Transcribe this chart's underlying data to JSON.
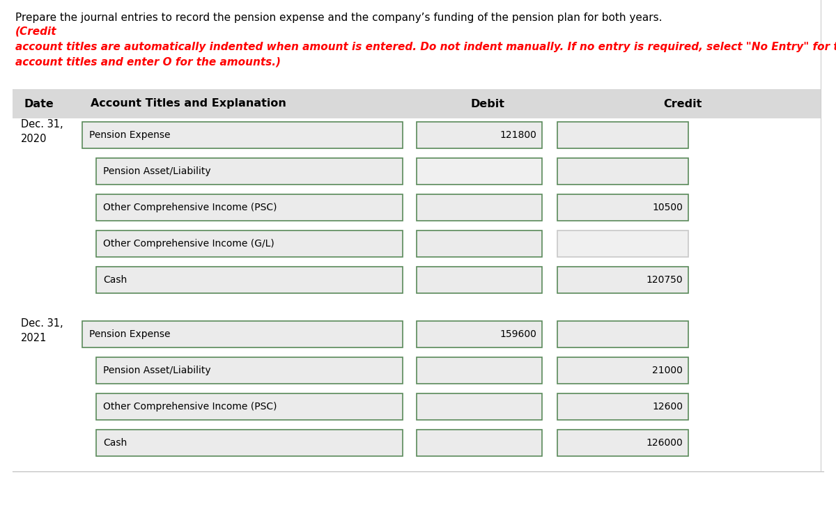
{
  "title_normal": "Prepare the journal entries to record the pension expense and the company’s funding of the pension plan for both years. ",
  "title_italic_red": "(Credit\naccount titles are automatically indented when amount is entered. Do not indent manually. If no entry is required, select \"No Entry\" for the\naccount titles and enter O for the amounts.)",
  "header_date": "Date",
  "header_account": "Account Titles and Explanation",
  "header_debit": "Debit",
  "header_credit": "Credit",
  "header_bg": "#d9d9d9",
  "bg_color": "#ffffff",
  "box_fill_light": "#ebebeb",
  "box_fill_white": "#f0f0f0",
  "box_border_green": "#5a8a5a",
  "box_border_white": "#c8c8c8",
  "rows_2020": [
    {
      "label": "Pension Expense",
      "debit": "121800",
      "credit": "",
      "indent": false,
      "debit_fill": "light",
      "credit_fill": "light"
    },
    {
      "label": "Pension Asset/Liability",
      "debit": "",
      "credit": "",
      "indent": true,
      "debit_fill": "white",
      "credit_fill": "light"
    },
    {
      "label": "Other Comprehensive Income (PSC)",
      "debit": "",
      "credit": "10500",
      "indent": true,
      "debit_fill": "light",
      "credit_fill": "light"
    },
    {
      "label": "Other Comprehensive Income (G/L)",
      "debit": "",
      "credit": "",
      "indent": true,
      "debit_fill": "light",
      "credit_fill": "white"
    },
    {
      "label": "Cash",
      "debit": "",
      "credit": "120750",
      "indent": true,
      "debit_fill": "light",
      "credit_fill": "light"
    }
  ],
  "rows_2021": [
    {
      "label": "Pension Expense",
      "debit": "159600",
      "credit": "",
      "indent": false,
      "debit_fill": "light",
      "credit_fill": "light"
    },
    {
      "label": "Pension Asset/Liability",
      "debit": "",
      "credit": "21000",
      "indent": true,
      "debit_fill": "light",
      "credit_fill": "light"
    },
    {
      "label": "Other Comprehensive Income (PSC)",
      "debit": "",
      "credit": "12600",
      "indent": true,
      "debit_fill": "light",
      "credit_fill": "light"
    },
    {
      "label": "Cash",
      "debit": "",
      "credit": "126000",
      "indent": true,
      "debit_fill": "light",
      "credit_fill": "light"
    }
  ],
  "date_2020": "Dec. 31,\n2020",
  "date_2021": "Dec. 31,\n2021",
  "font_size_title": 11.0,
  "font_size_header": 11.5,
  "font_size_cell": 10.0,
  "font_size_date": 10.5
}
